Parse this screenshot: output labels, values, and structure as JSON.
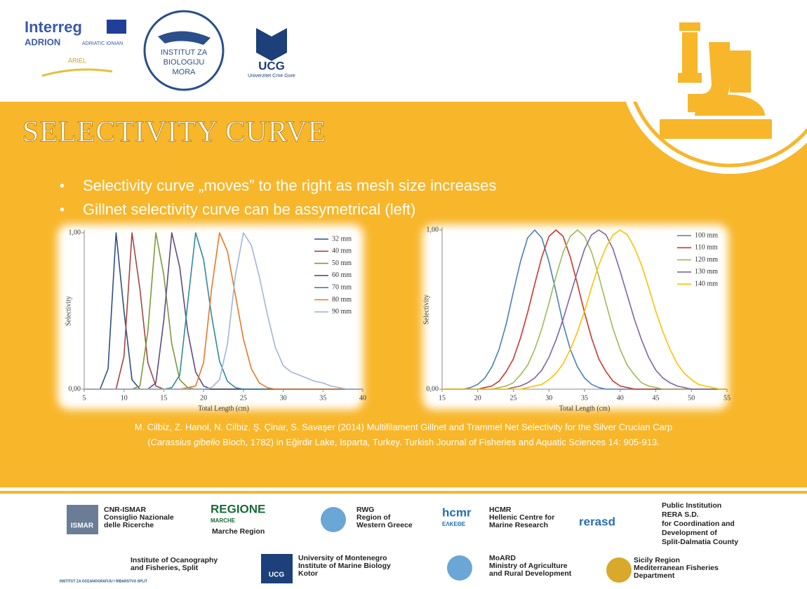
{
  "header": {
    "interreg": "Interreg",
    "adrion": "ADRION",
    "adriatic_ionian": "ADRIATIC IONIAN",
    "ariel": "ARIEL",
    "ibm": [
      "INSTITUT ZA",
      "BIOLOGIJU",
      "MORA"
    ],
    "ucg": "UCG",
    "ucg_name": "Univerzitet Crne Gore"
  },
  "title": "SELECTIVITY CURVE",
  "bullets": [
    "Selectivity curve „moves” to the right as mesh size increases",
    "Gillnet selectivity curve can be assymetrical (left)"
  ],
  "chart_data": [
    {
      "type": "line",
      "xlabel": "Total Length (cm)",
      "ylabel": "Selectivity",
      "legend": "upper right",
      "xlim": [
        5,
        40
      ],
      "xticks": [
        5,
        10,
        15,
        20,
        25,
        30,
        35,
        40
      ],
      "ylim": [
        0,
        1
      ],
      "yticks": [
        {
          "value": 0,
          "label": "0,00"
        },
        {
          "value": 1,
          "label": "1,00"
        }
      ],
      "x": [
        5,
        6,
        7,
        8,
        9,
        10,
        11,
        12,
        13,
        14,
        15,
        16,
        17,
        18,
        19,
        20,
        21,
        22,
        23,
        24,
        25,
        26,
        27,
        28,
        29,
        30,
        31,
        32,
        33,
        34,
        35,
        36,
        37,
        38,
        39,
        40
      ],
      "series": [
        {
          "name": "32 mm",
          "color": "#2e4f85",
          "values": [
            0,
            0,
            0,
            0.13,
            1,
            0.5,
            0.06,
            0,
            0,
            0,
            0,
            0,
            0,
            0,
            0,
            0,
            0,
            0,
            0,
            0,
            0,
            0,
            0,
            0,
            0,
            0,
            0,
            0,
            0,
            0,
            0,
            0,
            0,
            0,
            0,
            0
          ]
        },
        {
          "name": "40 mm",
          "color": "#a5453f",
          "values": [
            0,
            0,
            0,
            0,
            0,
            0.21,
            1,
            0.64,
            0.17,
            0.02,
            0,
            0,
            0,
            0,
            0,
            0,
            0,
            0,
            0,
            0,
            0,
            0,
            0,
            0,
            0,
            0,
            0,
            0,
            0,
            0,
            0,
            0,
            0,
            0,
            0,
            0
          ]
        },
        {
          "name": "50 mm",
          "color": "#7a9a3c",
          "values": [
            0,
            0,
            0,
            0,
            0,
            0,
            0,
            0.02,
            0.37,
            1,
            0.73,
            0.29,
            0.06,
            0.01,
            0,
            0,
            0,
            0,
            0,
            0,
            0,
            0,
            0,
            0,
            0,
            0,
            0,
            0,
            0,
            0,
            0,
            0,
            0,
            0,
            0,
            0
          ]
        },
        {
          "name": "60 mm",
          "color": "#5d4a82",
          "values": [
            0,
            0,
            0,
            0,
            0,
            0,
            0,
            0,
            0,
            0.04,
            0.44,
            1,
            0.78,
            0.37,
            0.11,
            0.02,
            0,
            0,
            0,
            0,
            0,
            0,
            0,
            0,
            0,
            0,
            0,
            0,
            0,
            0,
            0,
            0,
            0,
            0,
            0,
            0
          ]
        },
        {
          "name": "70 mm",
          "color": "#2f8aa0",
          "values": [
            0,
            0,
            0,
            0,
            0,
            0,
            0,
            0,
            0,
            0,
            0,
            0.01,
            0.09,
            0.55,
            1,
            0.83,
            0.47,
            0.18,
            0.05,
            0.01,
            0,
            0,
            0,
            0,
            0,
            0,
            0,
            0,
            0,
            0,
            0,
            0,
            0,
            0,
            0,
            0
          ]
        },
        {
          "name": "80 mm",
          "color": "#e8772a",
          "values": [
            0,
            0,
            0,
            0,
            0,
            0,
            0,
            0,
            0,
            0,
            0,
            0,
            0,
            0.01,
            0.02,
            0.17,
            0.64,
            1,
            0.88,
            0.6,
            0.32,
            0.13,
            0.04,
            0.01,
            0,
            0,
            0,
            0,
            0,
            0,
            0,
            0,
            0,
            0,
            0,
            0
          ]
        },
        {
          "name": "90 mm",
          "color": "#9fb6d8",
          "values": [
            0,
            0,
            0,
            0,
            0,
            0,
            0,
            0,
            0,
            0,
            0,
            0,
            0,
            0,
            0,
            0,
            0.01,
            0.06,
            0.29,
            0.73,
            1,
            0.92,
            0.72,
            0.48,
            0.27,
            0.15,
            0.11,
            0.09,
            0.07,
            0.05,
            0.04,
            0.02,
            0.01,
            0,
            0,
            0
          ]
        }
      ]
    },
    {
      "type": "line",
      "xlabel": "Total Length (cm)",
      "ylabel": "Selectivity",
      "legend": "upper right",
      "xlim": [
        15,
        55
      ],
      "xticks": [
        15,
        20,
        25,
        30,
        35,
        40,
        45,
        50,
        55
      ],
      "ylim": [
        0,
        1
      ],
      "yticks": [
        {
          "value": 0,
          "label": "0,00"
        },
        {
          "value": 1,
          "label": "1,00"
        }
      ],
      "x": [
        15,
        16,
        17,
        18,
        19,
        20,
        21,
        22,
        23,
        24,
        25,
        26,
        27,
        28,
        29,
        30,
        31,
        32,
        33,
        34,
        35,
        36,
        37,
        38,
        39,
        40,
        41,
        42,
        43,
        44,
        45,
        46,
        47,
        48,
        49,
        50,
        51,
        52,
        53,
        54,
        55
      ],
      "series": [
        {
          "name": "100 mm",
          "color": "#4a7ebb",
          "values": [
            0,
            0,
            0,
            0,
            0.01,
            0.03,
            0.07,
            0.14,
            0.25,
            0.41,
            0.61,
            0.8,
            0.95,
            1,
            0.95,
            0.8,
            0.61,
            0.41,
            0.25,
            0.14,
            0.07,
            0.03,
            0.01,
            0,
            0,
            0,
            0,
            0,
            0,
            0,
            0,
            0,
            0,
            0,
            0,
            0,
            0,
            0,
            0,
            0,
            0
          ]
        },
        {
          "name": "110 mm",
          "color": "#c9372f",
          "values": [
            0,
            0,
            0,
            0,
            0,
            0,
            0.01,
            0.02,
            0.05,
            0.11,
            0.19,
            0.32,
            0.48,
            0.66,
            0.83,
            0.96,
            1,
            0.96,
            0.83,
            0.66,
            0.48,
            0.32,
            0.19,
            0.11,
            0.05,
            0.02,
            0.01,
            0,
            0,
            0,
            0,
            0,
            0,
            0,
            0,
            0,
            0,
            0,
            0,
            0,
            0
          ]
        },
        {
          "name": "120 mm",
          "color": "#9bbb59",
          "values": [
            0,
            0,
            0,
            0,
            0,
            0,
            0,
            0,
            0.01,
            0.02,
            0.04,
            0.09,
            0.15,
            0.25,
            0.38,
            0.54,
            0.71,
            0.86,
            0.96,
            1,
            0.96,
            0.86,
            0.71,
            0.54,
            0.38,
            0.25,
            0.15,
            0.09,
            0.04,
            0.02,
            0.01,
            0,
            0,
            0,
            0,
            0,
            0,
            0,
            0,
            0,
            0
          ]
        },
        {
          "name": "130 mm",
          "color": "#8064a2",
          "values": [
            0,
            0,
            0,
            0,
            0,
            0,
            0,
            0,
            0,
            0,
            0.01,
            0.02,
            0.04,
            0.07,
            0.12,
            0.2,
            0.31,
            0.44,
            0.59,
            0.74,
            0.88,
            0.97,
            1,
            0.97,
            0.88,
            0.74,
            0.59,
            0.44,
            0.31,
            0.2,
            0.12,
            0.07,
            0.04,
            0.02,
            0.01,
            0,
            0,
            0,
            0,
            0,
            0
          ]
        },
        {
          "name": "140 mm",
          "color": "#ffc000",
          "values": [
            0,
            0,
            0,
            0,
            0,
            0,
            0,
            0,
            0,
            0,
            0,
            0,
            0.01,
            0.02,
            0.03,
            0.06,
            0.1,
            0.16,
            0.25,
            0.36,
            0.49,
            0.64,
            0.78,
            0.89,
            0.97,
            1,
            0.97,
            0.89,
            0.78,
            0.64,
            0.49,
            0.36,
            0.25,
            0.16,
            0.1,
            0.06,
            0.03,
            0.02,
            0.01,
            0,
            0
          ]
        }
      ]
    }
  ],
  "citation": {
    "line1": "M. Cilbiz, Z. Hanol, N. Cilbiz, Ş. Çinar, S. Savaşer (2014) Multifilament Gillnet and Trammel Net Selectivity for the Silver Crucian Carp",
    "open": "(",
    "italic": "Carassius gibelio",
    "rest": " Bloch, 1782) in Eğirdir Lake, Isparta, Turkey. Turkish Journal of Fisheries and Aquatic Sciences 14: 905-913."
  },
  "footer": {
    "partners": [
      {
        "logo": [
          "ISMAR"
        ],
        "lines": [
          "CNR-ISMAR",
          "Consiglio Nazionale",
          "delle Ricerche"
        ]
      },
      {
        "logo": [
          "REGIONE",
          "MARCHE"
        ],
        "lines": [
          "Marche Region"
        ]
      },
      {
        "lines": [
          "RWG",
          "Region of",
          "Western Greece"
        ]
      },
      {
        "logo": [
          "hcmr",
          "ΕΛΚΕΘΕ"
        ],
        "lines": [
          "HCMR",
          "Hellenic Centre for",
          "Marine Research"
        ]
      },
      {
        "logo": [
          "rerasd"
        ],
        "lines": [
          "Public Institution",
          "RERA S.D.",
          "for Coordination and",
          "Development of",
          "Split-Dalmatia County"
        ]
      },
      {
        "logo": [
          "INSTITUT ZA OCEANOGRAFIJU I RIBARSTVO SPLIT"
        ],
        "lines": [
          "Institute of Ocanography",
          "and Fisheries, Split"
        ]
      },
      {
        "logo": [
          "UCG"
        ],
        "lines": [
          "University of Montenegro",
          "Institute of Marine Biology",
          "Kotor"
        ]
      },
      {
        "lines": [
          "MoARD",
          "Ministry of Agriculture",
          "and Rural Development"
        ]
      },
      {
        "lines": [
          "Sicily Region",
          "Mediterranean Fisheries",
          "Department"
        ]
      }
    ]
  }
}
